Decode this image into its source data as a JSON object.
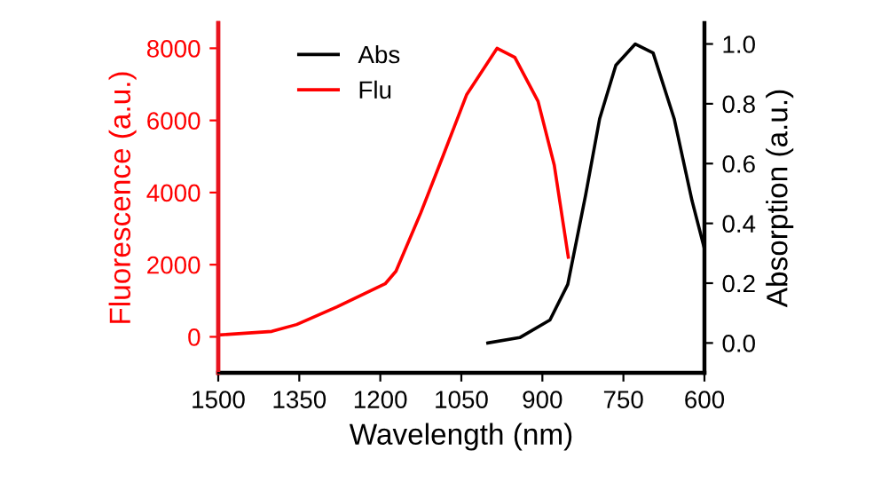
{
  "chart_data": {
    "type": "line",
    "xlabel": "Wavelength (nm)",
    "ylabel": "Fluorescence (a.u.)",
    "y2label": "Absorption (a.u.)",
    "xlim": [
      1500,
      600
    ],
    "xticks": [
      1500,
      1350,
      1200,
      1050,
      900,
      750,
      600
    ],
    "ylim": [
      -1000,
      8700
    ],
    "yticks": [
      0,
      2000,
      4000,
      6000,
      8000
    ],
    "y2lim": [
      -0.1,
      1.07
    ],
    "y2ticks": [
      {
        "value": 0,
        "label": "0.0"
      },
      0.2,
      0.4,
      0.6,
      0.8,
      {
        "value": 1,
        "label": "1.0"
      }
    ],
    "legend": "top left",
    "grid": false,
    "series": [
      {
        "name": "Abs",
        "color": "#000000",
        "axis": "y2",
        "x": [
          1001,
          942,
          886,
          853,
          820,
          794,
          764,
          728,
          695,
          656,
          623,
          600
        ],
        "values": [
          0.0,
          0.018,
          0.077,
          0.196,
          0.494,
          0.75,
          0.929,
          1.0,
          0.97,
          0.75,
          0.476,
          0.315
        ]
      },
      {
        "name": "Flu",
        "color": "#ff0000",
        "x": [
          1500,
          1401,
          1355,
          1280,
          1191,
          1171,
          1125,
          1083,
          1040,
          984,
          951,
          908,
          878,
          852
        ],
        "values": [
          50,
          150,
          340,
          830,
          1470,
          1820,
          3440,
          5050,
          6720,
          8000,
          7750,
          6530,
          4760,
          2210
        ]
      }
    ]
  }
}
